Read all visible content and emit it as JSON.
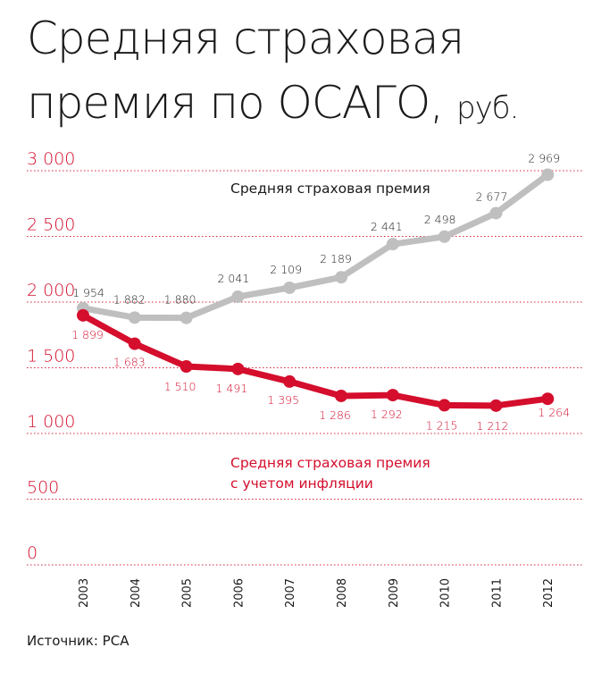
{
  "title": {
    "line1": "Средняя страховая",
    "line2": "премия по ОСАГО,",
    "unit": "руб."
  },
  "source": "Источник: РСА",
  "colors": {
    "red": "#d40e2c",
    "gray": "#bfbfbf",
    "grid": "#d40e2c",
    "text": "#1a1a1a"
  },
  "chart_data": {
    "type": "line",
    "title": "Средняя страховая премия по ОСАГО, руб.",
    "xlabel": "",
    "ylabel": "",
    "categories": [
      "2003",
      "2004",
      "2005",
      "2006",
      "2007",
      "2008",
      "2009",
      "2010",
      "2011",
      "2012"
    ],
    "ylim": [
      0,
      3000
    ],
    "yticks": [
      0,
      500,
      1000,
      1500,
      2000,
      2500,
      3000
    ],
    "ytick_labels": [
      "0",
      "500",
      "1 000",
      "1 500",
      "2 000",
      "2 500",
      "3 000"
    ],
    "grid": "horizontal dotted",
    "series": [
      {
        "name": "Средняя страховая премия",
        "color": "#bfbfbf",
        "values": [
          1954,
          1882,
          1880,
          2041,
          2109,
          2189,
          2441,
          2498,
          2677,
          2969
        ],
        "value_labels": [
          "1 954",
          "1 882",
          "1 880",
          "2 041",
          "2 109",
          "2 189",
          "2 441",
          "2 498",
          "2 677",
          "2 969"
        ]
      },
      {
        "name": "Средняя страховая премия с учетом инфляции",
        "name_lines": [
          "Средняя страховая премия",
          "с учетом инфляции"
        ],
        "color": "#d40e2c",
        "values": [
          1899,
          1683,
          1510,
          1491,
          1395,
          1286,
          1292,
          1215,
          1212,
          1264
        ],
        "value_labels": [
          "1 899",
          "1 683",
          "1 510",
          "1 491",
          "1 395",
          "1 286",
          "1 292",
          "1 215",
          "1 212",
          "1 264"
        ]
      }
    ]
  }
}
